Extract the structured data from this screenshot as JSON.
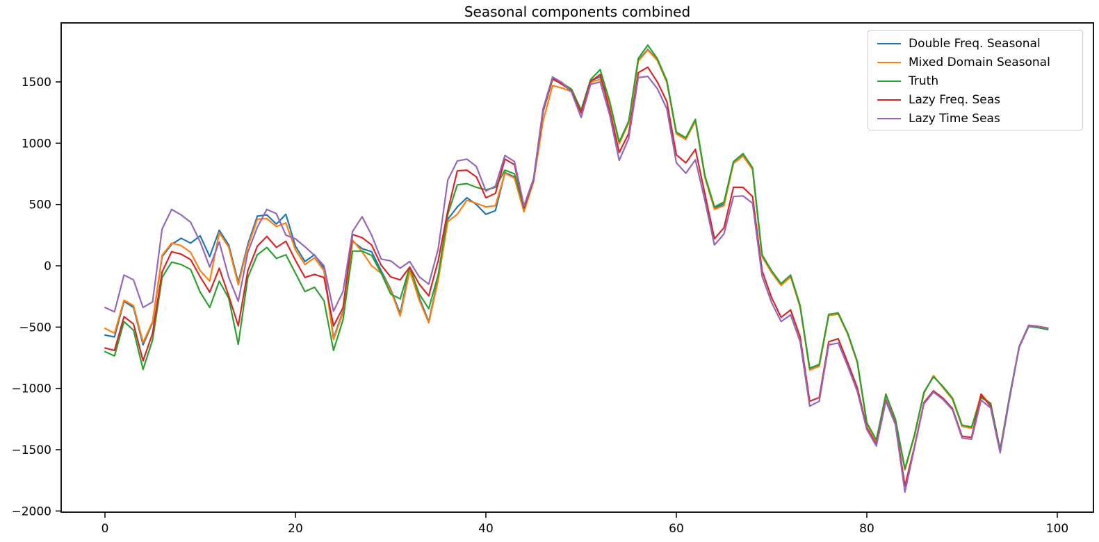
{
  "chart_data": {
    "type": "line",
    "title": "Seasonal components combined",
    "xlabel": "",
    "ylabel": "",
    "grid": false,
    "legend_position": "upper right",
    "xlim": [
      -4.6,
      103.8
    ],
    "ylim": [
      -2010,
      1980
    ],
    "xticks": [
      0,
      20,
      40,
      60,
      80,
      100
    ],
    "xtick_labels": [
      "0",
      "20",
      "40",
      "60",
      "80",
      "100"
    ],
    "yticks": [
      -2000,
      -1500,
      -1000,
      -500,
      0,
      500,
      1000,
      1500
    ],
    "ytick_labels": [
      "−2000",
      "−1500",
      "−1000",
      "−500",
      "0",
      "500",
      "1000",
      "1500"
    ],
    "x0": 0,
    "dx": 1,
    "n_points": 100,
    "series": [
      {
        "name": "Double Freq. Seasonal",
        "color": "#1f77b4",
        "values": [
          -565,
          -580,
          -290,
          -340,
          -645,
          -465,
          75,
          175,
          225,
          185,
          245,
          75,
          290,
          170,
          -135,
          175,
          405,
          415,
          340,
          420,
          160,
          35,
          90,
          -20,
          -590,
          -370,
          200,
          140,
          115,
          -40,
          -190,
          -390,
          -10,
          -260,
          -455,
          -95,
          380,
          480,
          555,
          500,
          420,
          450,
          760,
          725,
          450,
          690,
          1255,
          1530,
          1490,
          1430,
          1255,
          1510,
          1540,
          1330,
          1000,
          1170,
          1675,
          1765,
          1680,
          1500,
          1080,
          1035,
          1185,
          725,
          470,
          505,
          840,
          900,
          790,
          80,
          -50,
          -155,
          -85,
          -335,
          -845,
          -815,
          -400,
          -390,
          -555,
          -785,
          -1285,
          -1425,
          -1055,
          -1255,
          -1660,
          -1385,
          -1035,
          -900,
          -990,
          -1085,
          -1305,
          -1320,
          -1060,
          -1130,
          -1505,
          -1065,
          -662,
          -490,
          -500,
          -515
        ]
      },
      {
        "name": "Mixed Domain Seasonal",
        "color": "#ff7f0e",
        "values": [
          -510,
          -550,
          -280,
          -325,
          -625,
          -455,
          85,
          185,
          165,
          110,
          -40,
          -125,
          270,
          150,
          -155,
          155,
          380,
          385,
          320,
          350,
          130,
          10,
          65,
          -40,
          -600,
          -380,
          210,
          115,
          0,
          -60,
          -200,
          -410,
          -40,
          -280,
          -465,
          -115,
          360,
          420,
          535,
          510,
          480,
          490,
          755,
          715,
          440,
          685,
          1180,
          1470,
          1450,
          1420,
          1245,
          1500,
          1520,
          1325,
          995,
          1165,
          1670,
          1760,
          1675,
          1495,
          1075,
          1030,
          1180,
          720,
          460,
          490,
          835,
          895,
          785,
          75,
          -55,
          -160,
          -90,
          -340,
          -850,
          -820,
          -405,
          -395,
          -560,
          -790,
          -1290,
          -1430,
          -1045,
          -1260,
          -1665,
          -1390,
          -1040,
          -895,
          -995,
          -1090,
          -1310,
          -1325,
          -1045,
          -1135,
          -1505,
          -1065,
          -660,
          -488,
          -498,
          -512
        ]
      },
      {
        "name": "Truth",
        "color": "#2ca02c",
        "values": [
          -700,
          -735,
          -455,
          -525,
          -845,
          -605,
          -95,
          30,
          10,
          -30,
          -215,
          -340,
          -125,
          -265,
          -640,
          -95,
          90,
          150,
          60,
          90,
          -60,
          -210,
          -175,
          -285,
          -690,
          -440,
          120,
          120,
          85,
          -60,
          -230,
          -270,
          -10,
          -230,
          -350,
          -70,
          420,
          660,
          670,
          640,
          620,
          640,
          780,
          750,
          470,
          700,
          1260,
          1520,
          1490,
          1440,
          1270,
          1520,
          1600,
          1340,
          1010,
          1180,
          1690,
          1800,
          1690,
          1510,
          1090,
          1045,
          1195,
          735,
          480,
          520,
          850,
          915,
          800,
          90,
          -40,
          -145,
          -75,
          -325,
          -835,
          -805,
          -395,
          -385,
          -550,
          -780,
          -1280,
          -1420,
          -1050,
          -1250,
          -1655,
          -1380,
          -1030,
          -905,
          -985,
          -1080,
          -1300,
          -1315,
          -1075,
          -1120,
          -1500,
          -1060,
          -665,
          -495,
          -505,
          -520
        ]
      },
      {
        "name": "Lazy Freq. Seas",
        "color": "#d62728",
        "values": [
          -670,
          -690,
          -415,
          -475,
          -775,
          -550,
          -50,
          115,
          95,
          50,
          -90,
          -215,
          -20,
          -245,
          -490,
          -40,
          160,
          240,
          150,
          200,
          45,
          -95,
          -70,
          -95,
          -490,
          -340,
          255,
          230,
          170,
          5,
          -90,
          -115,
          -10,
          -150,
          -245,
          45,
          450,
          775,
          780,
          725,
          555,
          590,
          870,
          825,
          475,
          700,
          1265,
          1525,
          1480,
          1425,
          1250,
          1505,
          1560,
          1270,
          925,
          1080,
          1575,
          1620,
          1500,
          1340,
          905,
          840,
          950,
          585,
          220,
          310,
          640,
          640,
          565,
          -40,
          -260,
          -420,
          -360,
          -580,
          -1105,
          -1075,
          -620,
          -595,
          -790,
          -995,
          -1320,
          -1455,
          -1095,
          -1285,
          -1795,
          -1475,
          -1115,
          -1020,
          -1080,
          -1165,
          -1390,
          -1400,
          -1050,
          -1145,
          -1515,
          -1075,
          -658,
          -485,
          -495,
          -508
        ]
      },
      {
        "name": "Lazy Time Seas",
        "color": "#9467bd",
        "values": [
          -340,
          -375,
          -75,
          -115,
          -340,
          -295,
          300,
          460,
          415,
          355,
          195,
          -10,
          195,
          -95,
          -290,
          110,
          315,
          460,
          425,
          250,
          220,
          155,
          85,
          0,
          -370,
          -210,
          280,
          400,
          250,
          55,
          40,
          -20,
          35,
          -90,
          -150,
          140,
          700,
          855,
          870,
          810,
          610,
          650,
          900,
          850,
          490,
          710,
          1280,
          1540,
          1495,
          1415,
          1210,
          1480,
          1500,
          1230,
          860,
          1040,
          1535,
          1545,
          1445,
          1280,
          840,
          755,
          865,
          530,
          170,
          260,
          565,
          570,
          510,
          -85,
          -300,
          -455,
          -400,
          -620,
          -1145,
          -1105,
          -645,
          -630,
          -820,
          -1025,
          -1335,
          -1470,
          -1105,
          -1295,
          -1845,
          -1485,
          -1125,
          -1030,
          -1090,
          -1175,
          -1405,
          -1415,
          -1095,
          -1160,
          -1525,
          -1080,
          -662,
          -487,
          -497,
          -510
        ]
      }
    ]
  },
  "legend": {
    "items": [
      {
        "label": "Double Freq. Seasonal"
      },
      {
        "label": "Mixed Domain Seasonal"
      },
      {
        "label": "Truth"
      },
      {
        "label": "Lazy Freq. Seas"
      },
      {
        "label": "Lazy Time Seas"
      }
    ]
  }
}
